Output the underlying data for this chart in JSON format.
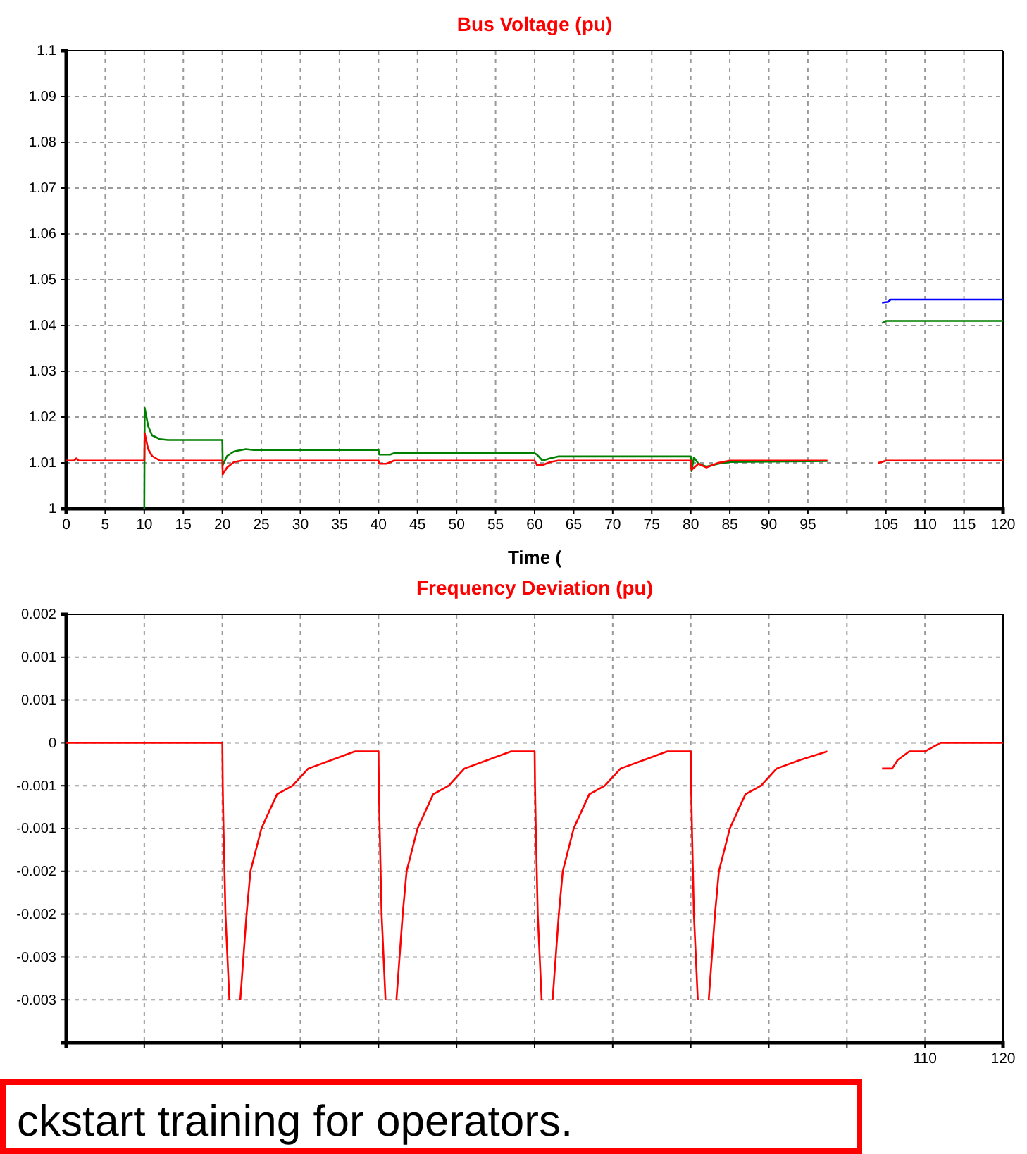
{
  "chart_data": [
    {
      "type": "line",
      "title": "Bus Voltage (pu)",
      "xlabel": "Time (",
      "grid": true,
      "xlim": [
        0,
        120
      ],
      "xticks": [
        0,
        5,
        10,
        15,
        20,
        25,
        30,
        35,
        40,
        45,
        50,
        55,
        60,
        65,
        70,
        75,
        80,
        85,
        90,
        95,
        {
          "value": 100,
          "label": null
        },
        105,
        110,
        115,
        120
      ],
      "ylim": [
        1,
        1.1
      ],
      "yticks": [
        1,
        1.01,
        1.02,
        1.03,
        1.04,
        1.05,
        1.06,
        1.07,
        1.08,
        1.09,
        1.1
      ],
      "series": [
        {
          "color": "#0000ff",
          "x": [
            104.5,
            105.3,
            105.6,
            120
          ],
          "values": [
            1.045,
            1.0452,
            1.0457,
            1.0457
          ]
        },
        {
          "color": "#008000",
          "x": [
            10,
            10.05,
            10.5,
            11,
            12,
            13,
            20,
            20.05,
            20.6,
            21.5,
            23,
            24,
            40,
            40.1,
            41.5,
            42,
            60,
            60.3,
            61,
            62,
            63,
            80,
            80.1,
            80.4,
            81,
            82,
            83.5,
            85,
            97.5,
            98,
            104.5,
            105,
            120
          ],
          "values": [
            1.0,
            1.022,
            1.018,
            1.016,
            1.0152,
            1.015,
            1.015,
            1.0095,
            1.0115,
            1.0125,
            1.013,
            1.0128,
            1.0128,
            1.0118,
            1.0118,
            1.0121,
            1.0121,
            1.0118,
            1.0105,
            1.011,
            1.0114,
            1.0114,
            1.0082,
            1.0112,
            1.0098,
            1.0092,
            1.0098,
            1.0102,
            1.0104,
            null,
            1.0405,
            1.041,
            1.041
          ]
        },
        {
          "color": "#ff0000",
          "x": [
            0,
            1,
            1.3,
            1.6,
            10,
            10.05,
            10.5,
            11,
            12,
            20,
            20.05,
            20.6,
            21.5,
            22.5,
            40,
            40.1,
            41,
            42,
            60,
            60.3,
            61,
            62,
            63,
            80,
            80.1,
            81,
            82,
            83.5,
            85,
            97.5,
            98,
            104,
            104.5,
            105,
            120
          ],
          "values": [
            1.0105,
            1.0105,
            1.011,
            1.0105,
            1.0105,
            1.0165,
            1.013,
            1.0115,
            1.0105,
            1.0105,
            1.0075,
            1.009,
            1.0102,
            1.0105,
            1.0105,
            1.0098,
            1.0098,
            1.0105,
            1.0105,
            1.0095,
            1.0095,
            1.0102,
            1.0105,
            1.0105,
            1.0085,
            1.0098,
            1.009,
            1.01,
            1.0105,
            1.0105,
            null,
            1.01,
            1.0102,
            1.0105,
            1.0105
          ]
        }
      ]
    },
    {
      "type": "line",
      "title": "Frequency Deviation (pu)",
      "grid": true,
      "xlim": [
        0,
        120
      ],
      "xticks": [
        {
          "value": 0,
          "label": null
        },
        {
          "value": 10,
          "label": null
        },
        {
          "value": 20,
          "label": null
        },
        {
          "value": 30,
          "label": null
        },
        {
          "value": 40,
          "label": null
        },
        {
          "value": 50,
          "label": null
        },
        {
          "value": 60,
          "label": null
        },
        {
          "value": 70,
          "label": null
        },
        {
          "value": 80,
          "label": null
        },
        {
          "value": 90,
          "label": null
        },
        {
          "value": 100,
          "label": null
        },
        110,
        120
      ],
      "ylim": [
        -0.0035,
        0.0015
      ],
      "yticks": [
        {
          "value": 0.0015,
          "label": "0.002"
        },
        {
          "value": 0.001,
          "label": "0.001"
        },
        {
          "value": 0.0005,
          "label": "0.001"
        },
        0,
        {
          "value": -0.0005,
          "label": "-0.001"
        },
        {
          "value": -0.001,
          "label": "-0.001"
        },
        {
          "value": -0.0015,
          "label": "-0.002"
        },
        {
          "value": -0.002,
          "label": "-0.002"
        },
        {
          "value": -0.0025,
          "label": "-0.003"
        },
        {
          "value": -0.003,
          "label": "-0.003"
        }
      ],
      "annotations": [
        "ckstart training for operators."
      ],
      "series": [
        {
          "color": "#ff0000",
          "x": [
            0,
            20,
            20.05,
            20.15,
            20.4,
            20.9,
            21.2,
            21.9,
            22.3,
            22.7,
            23.1,
            23.6,
            25,
            27,
            29,
            31,
            34,
            37,
            39.9,
            40,
            40.05,
            40.15,
            40.4,
            40.9,
            41.2,
            41.9,
            42.3,
            42.7,
            43.1,
            43.6,
            45,
            47,
            49,
            51,
            54,
            57,
            59.9,
            60,
            60.05,
            60.15,
            60.4,
            60.9,
            61.2,
            61.9,
            62.3,
            62.7,
            63.1,
            63.6,
            65,
            67,
            69,
            71,
            74,
            77,
            79.9,
            80,
            80.05,
            80.15,
            80.4,
            80.9,
            81.2,
            81.9,
            82.3,
            82.7,
            83.1,
            83.6,
            85,
            87,
            89,
            91,
            94,
            97.5,
            98,
            104.5,
            105.8,
            106.5,
            108,
            110,
            112,
            115,
            120
          ],
          "values": [
            0,
            0,
            -0.0005,
            -0.001,
            -0.002,
            -0.003,
            null,
            null,
            -0.003,
            -0.0025,
            -0.002,
            -0.0015,
            -0.001,
            -0.0006,
            -0.0005,
            -0.0003,
            -0.0002,
            -0.0001,
            -0.0001,
            -0.0001,
            -0.0005,
            -0.001,
            -0.002,
            -0.003,
            null,
            null,
            -0.003,
            -0.0025,
            -0.002,
            -0.0015,
            -0.001,
            -0.0006,
            -0.0005,
            -0.0003,
            -0.0002,
            -0.0001,
            -0.0001,
            -0.0001,
            -0.0005,
            -0.001,
            -0.002,
            -0.003,
            null,
            null,
            -0.003,
            -0.0025,
            -0.002,
            -0.0015,
            -0.001,
            -0.0006,
            -0.0005,
            -0.0003,
            -0.0002,
            -0.0001,
            -0.0001,
            -0.0001,
            -0.0005,
            -0.001,
            -0.002,
            -0.003,
            null,
            null,
            -0.003,
            -0.0025,
            -0.002,
            -0.0015,
            -0.001,
            -0.0006,
            -0.0005,
            -0.0003,
            -0.0002,
            -0.0001,
            null,
            -0.0003,
            -0.0003,
            -0.0002,
            -0.0001,
            -0.0001,
            0,
            0,
            0
          ]
        }
      ]
    }
  ]
}
